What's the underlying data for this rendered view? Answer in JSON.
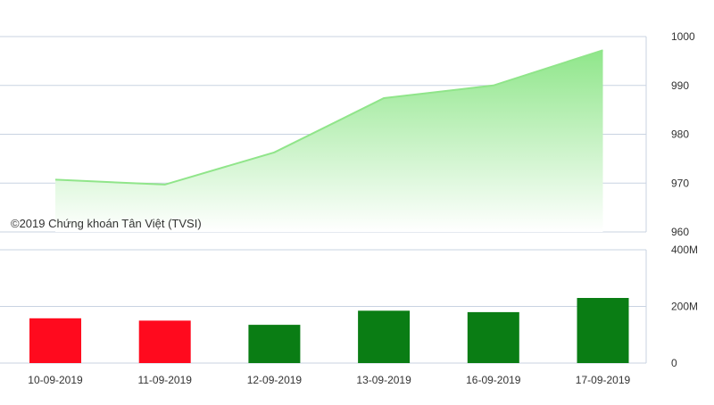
{
  "credit": "©2019 Chứng khoán Tân Việt (TVSI)",
  "colors": {
    "line": "#90e58a",
    "area_top": "#8fe68a",
    "area_bottom": "#ffffff",
    "volume_up": "#0a7d14",
    "volume_down": "#ff0a1e",
    "grid": "#c9d3e2",
    "text": "#333333"
  },
  "chart_data": [
    {
      "type": "area",
      "categories": [
        "10-09-2019",
        "11-09-2019",
        "12-09-2019",
        "13-09-2019",
        "16-09-2019",
        "17-09-2019"
      ],
      "values": [
        970.7,
        969.7,
        976.3,
        987.4,
        990.0,
        997.2
      ],
      "ylim": [
        960,
        1000
      ],
      "yticks": [
        "960",
        "970",
        "980",
        "990",
        "1000"
      ],
      "grid": true,
      "axis_side": "right"
    },
    {
      "type": "bar",
      "categories": [
        "10-09-2019",
        "11-09-2019",
        "12-09-2019",
        "13-09-2019",
        "16-09-2019",
        "17-09-2019"
      ],
      "values": [
        158,
        150,
        135,
        185,
        180,
        230
      ],
      "directions": [
        "down",
        "down",
        "up",
        "up",
        "up",
        "up"
      ],
      "unit": "M",
      "ylim": [
        0,
        400
      ],
      "yticks": [
        "0",
        "200M",
        "400M"
      ],
      "grid": true,
      "axis_side": "right"
    }
  ]
}
